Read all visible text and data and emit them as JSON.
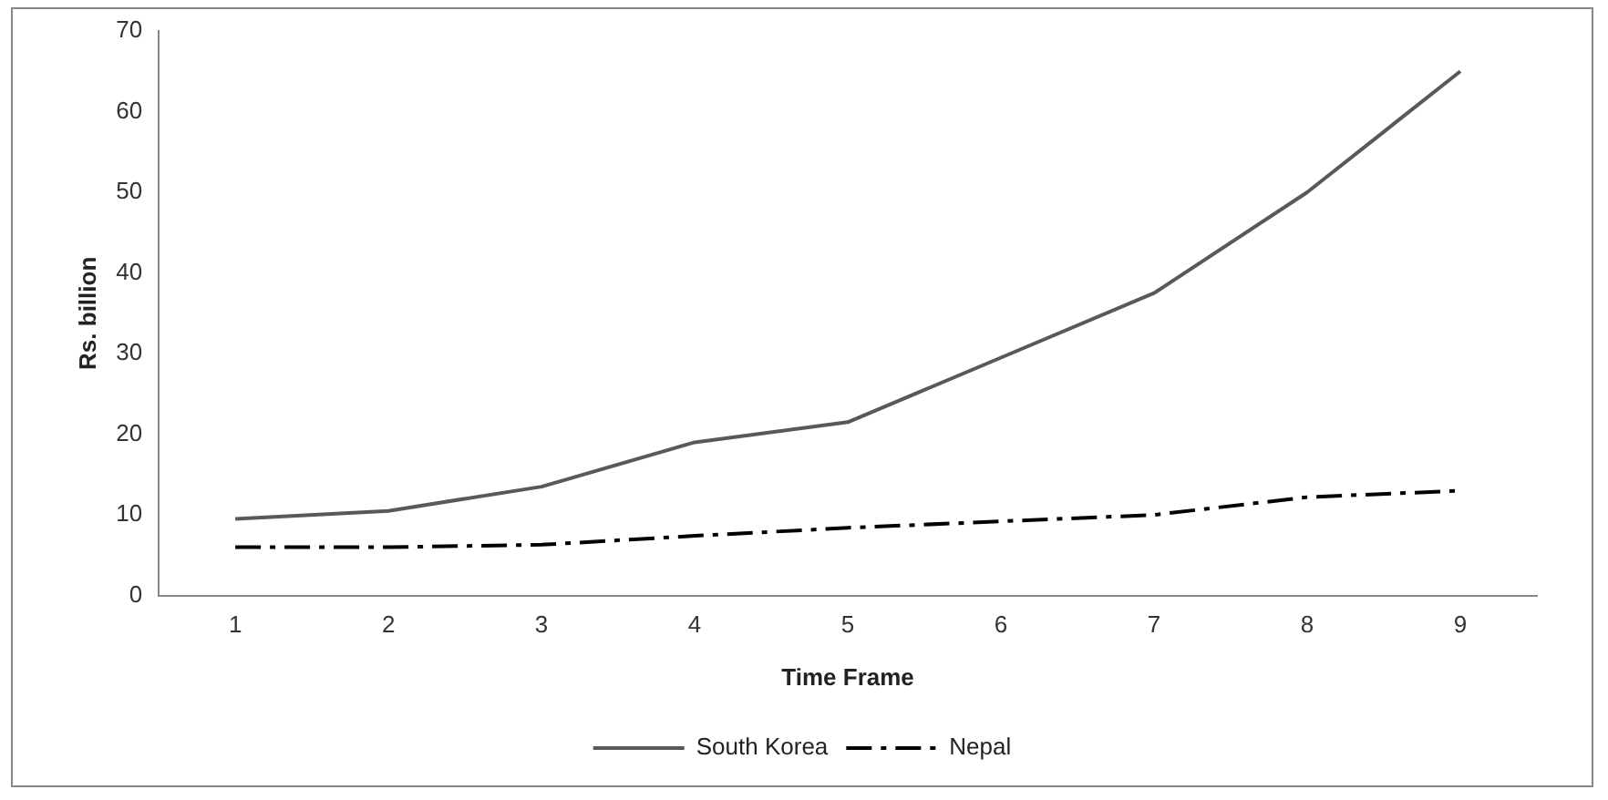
{
  "chart_data": {
    "type": "line",
    "xlabel": "Time Frame",
    "ylabel": "Rs. billion",
    "categories": [
      "1",
      "2",
      "3",
      "4",
      "5",
      "6",
      "7",
      "8",
      "9"
    ],
    "series": [
      {
        "name": "South Korea",
        "color": "#595959",
        "line_style": "solid",
        "values": [
          9.5,
          10.5,
          13.5,
          19,
          21.5,
          29.5,
          37.5,
          50,
          65
        ]
      },
      {
        "name": "Nepal",
        "color": "#000000",
        "line_style": "dashed",
        "values": [
          6,
          6,
          6.3,
          7.4,
          8.4,
          9.2,
          10,
          12.2,
          13
        ]
      }
    ],
    "ylim": [
      0,
      70
    ],
    "yticks": [
      0,
      10,
      20,
      30,
      40,
      50,
      60,
      70
    ],
    "grid": false,
    "legend": "bottom",
    "marker": "none"
  }
}
